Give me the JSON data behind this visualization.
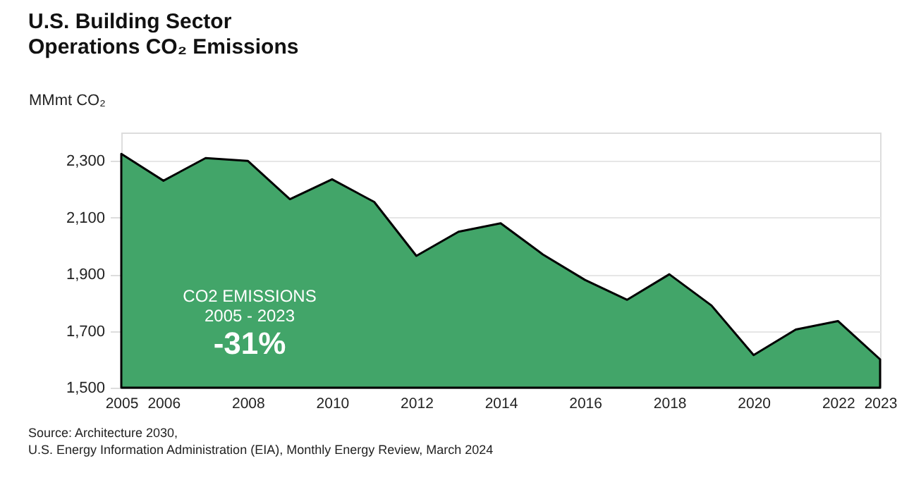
{
  "chart_data": {
    "type": "area",
    "title": "U.S. Building Sector\nOperations CO₂ Emissions",
    "ylabel": "MMmt CO₂",
    "x": [
      2005,
      2006,
      2007,
      2008,
      2009,
      2010,
      2011,
      2012,
      2013,
      2014,
      2015,
      2016,
      2017,
      2018,
      2019,
      2020,
      2021,
      2022,
      2023
    ],
    "series": [
      {
        "color": "#42a569",
        "values": [
          2325,
          2230,
          2310,
          2300,
          2165,
          2235,
          2155,
          1965,
          2050,
          2080,
          1970,
          1880,
          1810,
          1900,
          1790,
          1615,
          1705,
          1735,
          1600
        ]
      }
    ],
    "xlim": [
      2005,
      2023
    ],
    "xticks": [
      2005,
      2006,
      2008,
      2010,
      2012,
      2014,
      2016,
      2018,
      2020,
      2022,
      2023
    ],
    "ylim": [
      1500,
      2400
    ],
    "yticks": [
      {
        "value": 1500,
        "label": "1,500"
      },
      {
        "value": 1700,
        "label": "1,700"
      },
      {
        "value": 1900,
        "label": "1,900"
      },
      {
        "value": 2100,
        "label": "2,100"
      },
      {
        "value": 2300,
        "label": "2,300"
      }
    ],
    "grid": "y",
    "annotations": [
      "CO2 EMISSIONS",
      "2005 - 2023",
      "-31%",
      "Source: Architecture 2030,",
      "U.S. Energy Information Administration (EIA), Monthly Energy Review, March 2024"
    ]
  }
}
